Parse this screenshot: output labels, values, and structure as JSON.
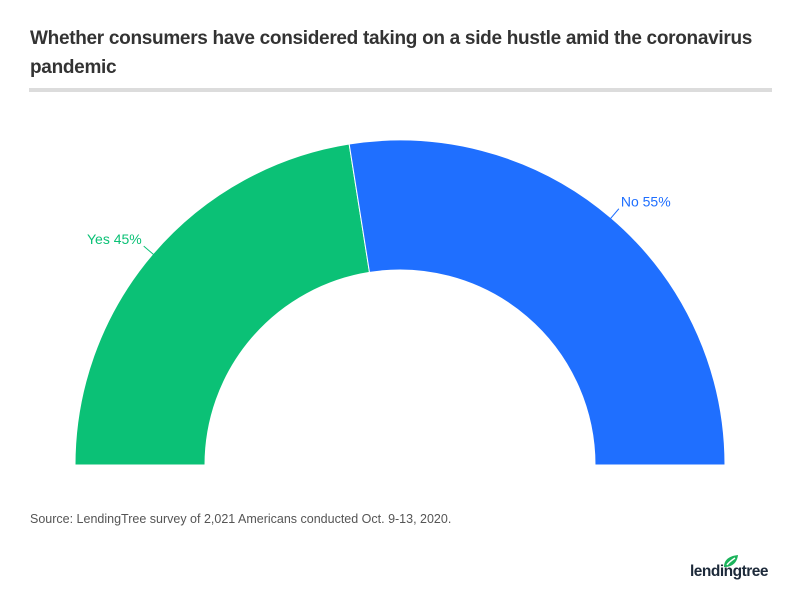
{
  "chart_data": {
    "type": "pie",
    "style": "semi-donut",
    "title": "Whether consumers have considered taking on a side hustle amid the coronavirus pandemic",
    "slices": [
      {
        "label": "Yes",
        "value": 45,
        "display": "Yes 45%",
        "color": "#0bc176"
      },
      {
        "label": "No",
        "value": 55,
        "display": "No 55%",
        "color": "#1f6fff"
      }
    ],
    "source": "Source: LendingTree survey of 2,021 Americans conducted Oct. 9-13, 2020."
  },
  "branding": {
    "logo": "lendingtree",
    "leaf_color": "#1bb35b"
  }
}
